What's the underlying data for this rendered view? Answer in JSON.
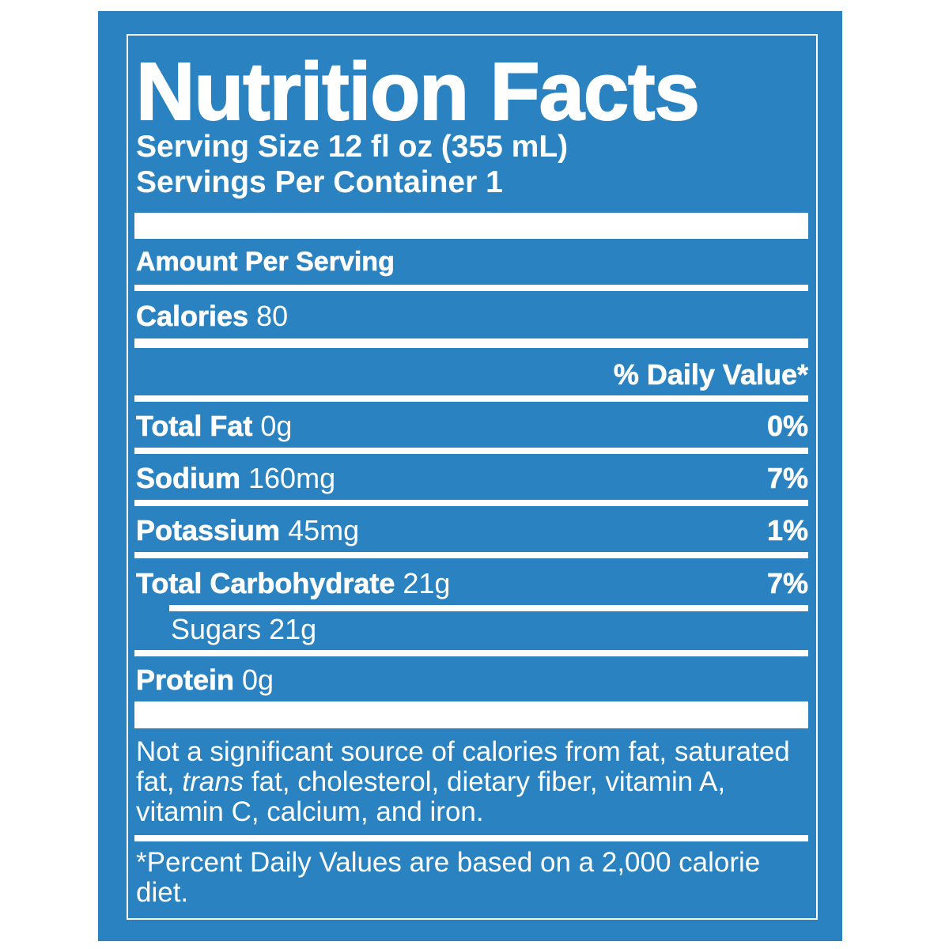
{
  "title": "Nutrition Facts",
  "serving_size": "Serving Size 12 fl oz (355 mL)",
  "servings_per_container": "Servings Per Container 1",
  "amount_per_serving": "Amount Per Serving",
  "calories": {
    "label": "Calories",
    "value": "80"
  },
  "daily_value_header": "% Daily Value*",
  "nutrients": [
    {
      "name": "Total Fat",
      "amount": "0g",
      "dv": "0%"
    },
    {
      "name": "Sodium",
      "amount": "160mg",
      "dv": "7%"
    },
    {
      "name": "Potassium",
      "amount": "45mg",
      "dv": "1%"
    },
    {
      "name": "Total Carbohydrate",
      "amount": "21g",
      "dv": "7%"
    },
    {
      "name": "Sugars",
      "amount": "21g",
      "dv": ""
    },
    {
      "name": "Protein",
      "amount": "0g",
      "dv": ""
    }
  ],
  "note": {
    "part1": "Not a significant source of calories from fat, saturated fat, ",
    "italic": "trans",
    "part2": " fat, cholesterol, dietary fiber, vitamin A, vitamin C, calcium, and iron."
  },
  "footnote": "*Percent Daily Values are based on a 2,000 calorie diet.",
  "colors": {
    "background": "#2a83c0",
    "text": "#ffffff"
  }
}
